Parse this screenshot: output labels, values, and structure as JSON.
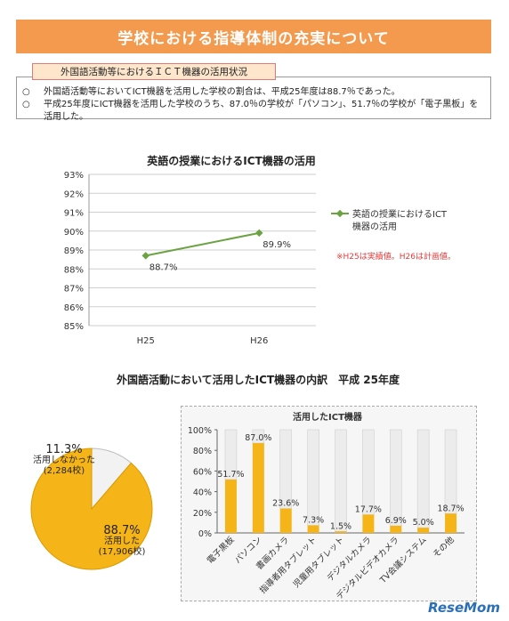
{
  "header": {
    "title": "学校における指導体制の充実について"
  },
  "section": {
    "label": "外国語活動等におけるＩＣＴ機器の活用状況",
    "bullets": [
      {
        "mark": "○",
        "text": "外国語活動等においてICT機器を活用した学校の割合は、平成25年度は88.7％であった。"
      },
      {
        "mark": "○",
        "text": "平成25年度にICT機器を活用した学校のうち、87.0％の学校が「パソコン」、51.7％の学校が「電子黒板」を活用した。"
      }
    ]
  },
  "chart1": {
    "title": "英語の授業におけるICT機器の活用",
    "legend": [
      "英語の授業におけるICT",
      "機器の活用"
    ],
    "note": "※H25は実績値。H26は計画値。",
    "line_color": "#6ba342",
    "note_color": "#e03c3c"
  },
  "chart2": {
    "title": "外国語活動において活用したICT機器の内訳　平成 25年度",
    "pie_labels": {
      "unused_pct": "11.3%",
      "unused_label": "活用しなかった",
      "unused_count": "(2,284校)",
      "used_pct": "88.7%",
      "used_label": "活用した",
      "used_count": "(17,906校)"
    },
    "bar_title": "活用したICT機器",
    "bar_color": "#f5b417"
  },
  "watermark": "ReseMom",
  "chart_data": [
    {
      "type": "line",
      "title": "英語の授業におけるICT機器の活用",
      "categories": [
        "H25",
        "H26"
      ],
      "series": [
        {
          "name": "英語の授業におけるICT機器の活用",
          "values": [
            88.7,
            89.9
          ],
          "labels": [
            "88.7%",
            "89.9%"
          ]
        }
      ],
      "yticks": [
        "93%",
        "92%",
        "91%",
        "90%",
        "89%",
        "88%",
        "87%",
        "86%",
        "85%"
      ],
      "ylim": [
        85,
        93
      ],
      "grid": true,
      "legend": "right"
    },
    {
      "type": "pie",
      "slices": [
        {
          "name": "活用した",
          "value": 88.7,
          "count": "(17,906校)"
        },
        {
          "name": "活用しなかった",
          "value": 11.3,
          "count": "(2,284校)"
        }
      ]
    },
    {
      "type": "bar",
      "title": "活用したICT機器",
      "categories": [
        "電子黒板",
        "パソコン",
        "書画カメラ",
        "指導者用タブレット",
        "児童用タブレット",
        "デジタルカメラ",
        "デジタルビデオカメラ",
        "TV会議システム",
        "その他"
      ],
      "values": [
        51.7,
        87.0,
        23.6,
        7.3,
        1.5,
        17.7,
        6.9,
        5.0,
        18.7
      ],
      "labels": [
        "51.7%",
        "87.0%",
        "23.6%",
        "7.3%",
        "1.5%",
        "17.7%",
        "6.9%",
        "5.0%",
        "18.7%"
      ],
      "yticks": [
        "100%",
        "80%",
        "60%",
        "40%",
        "20%",
        "0%"
      ],
      "ylim": [
        0,
        100
      ],
      "stacked_remainder": true
    }
  ]
}
